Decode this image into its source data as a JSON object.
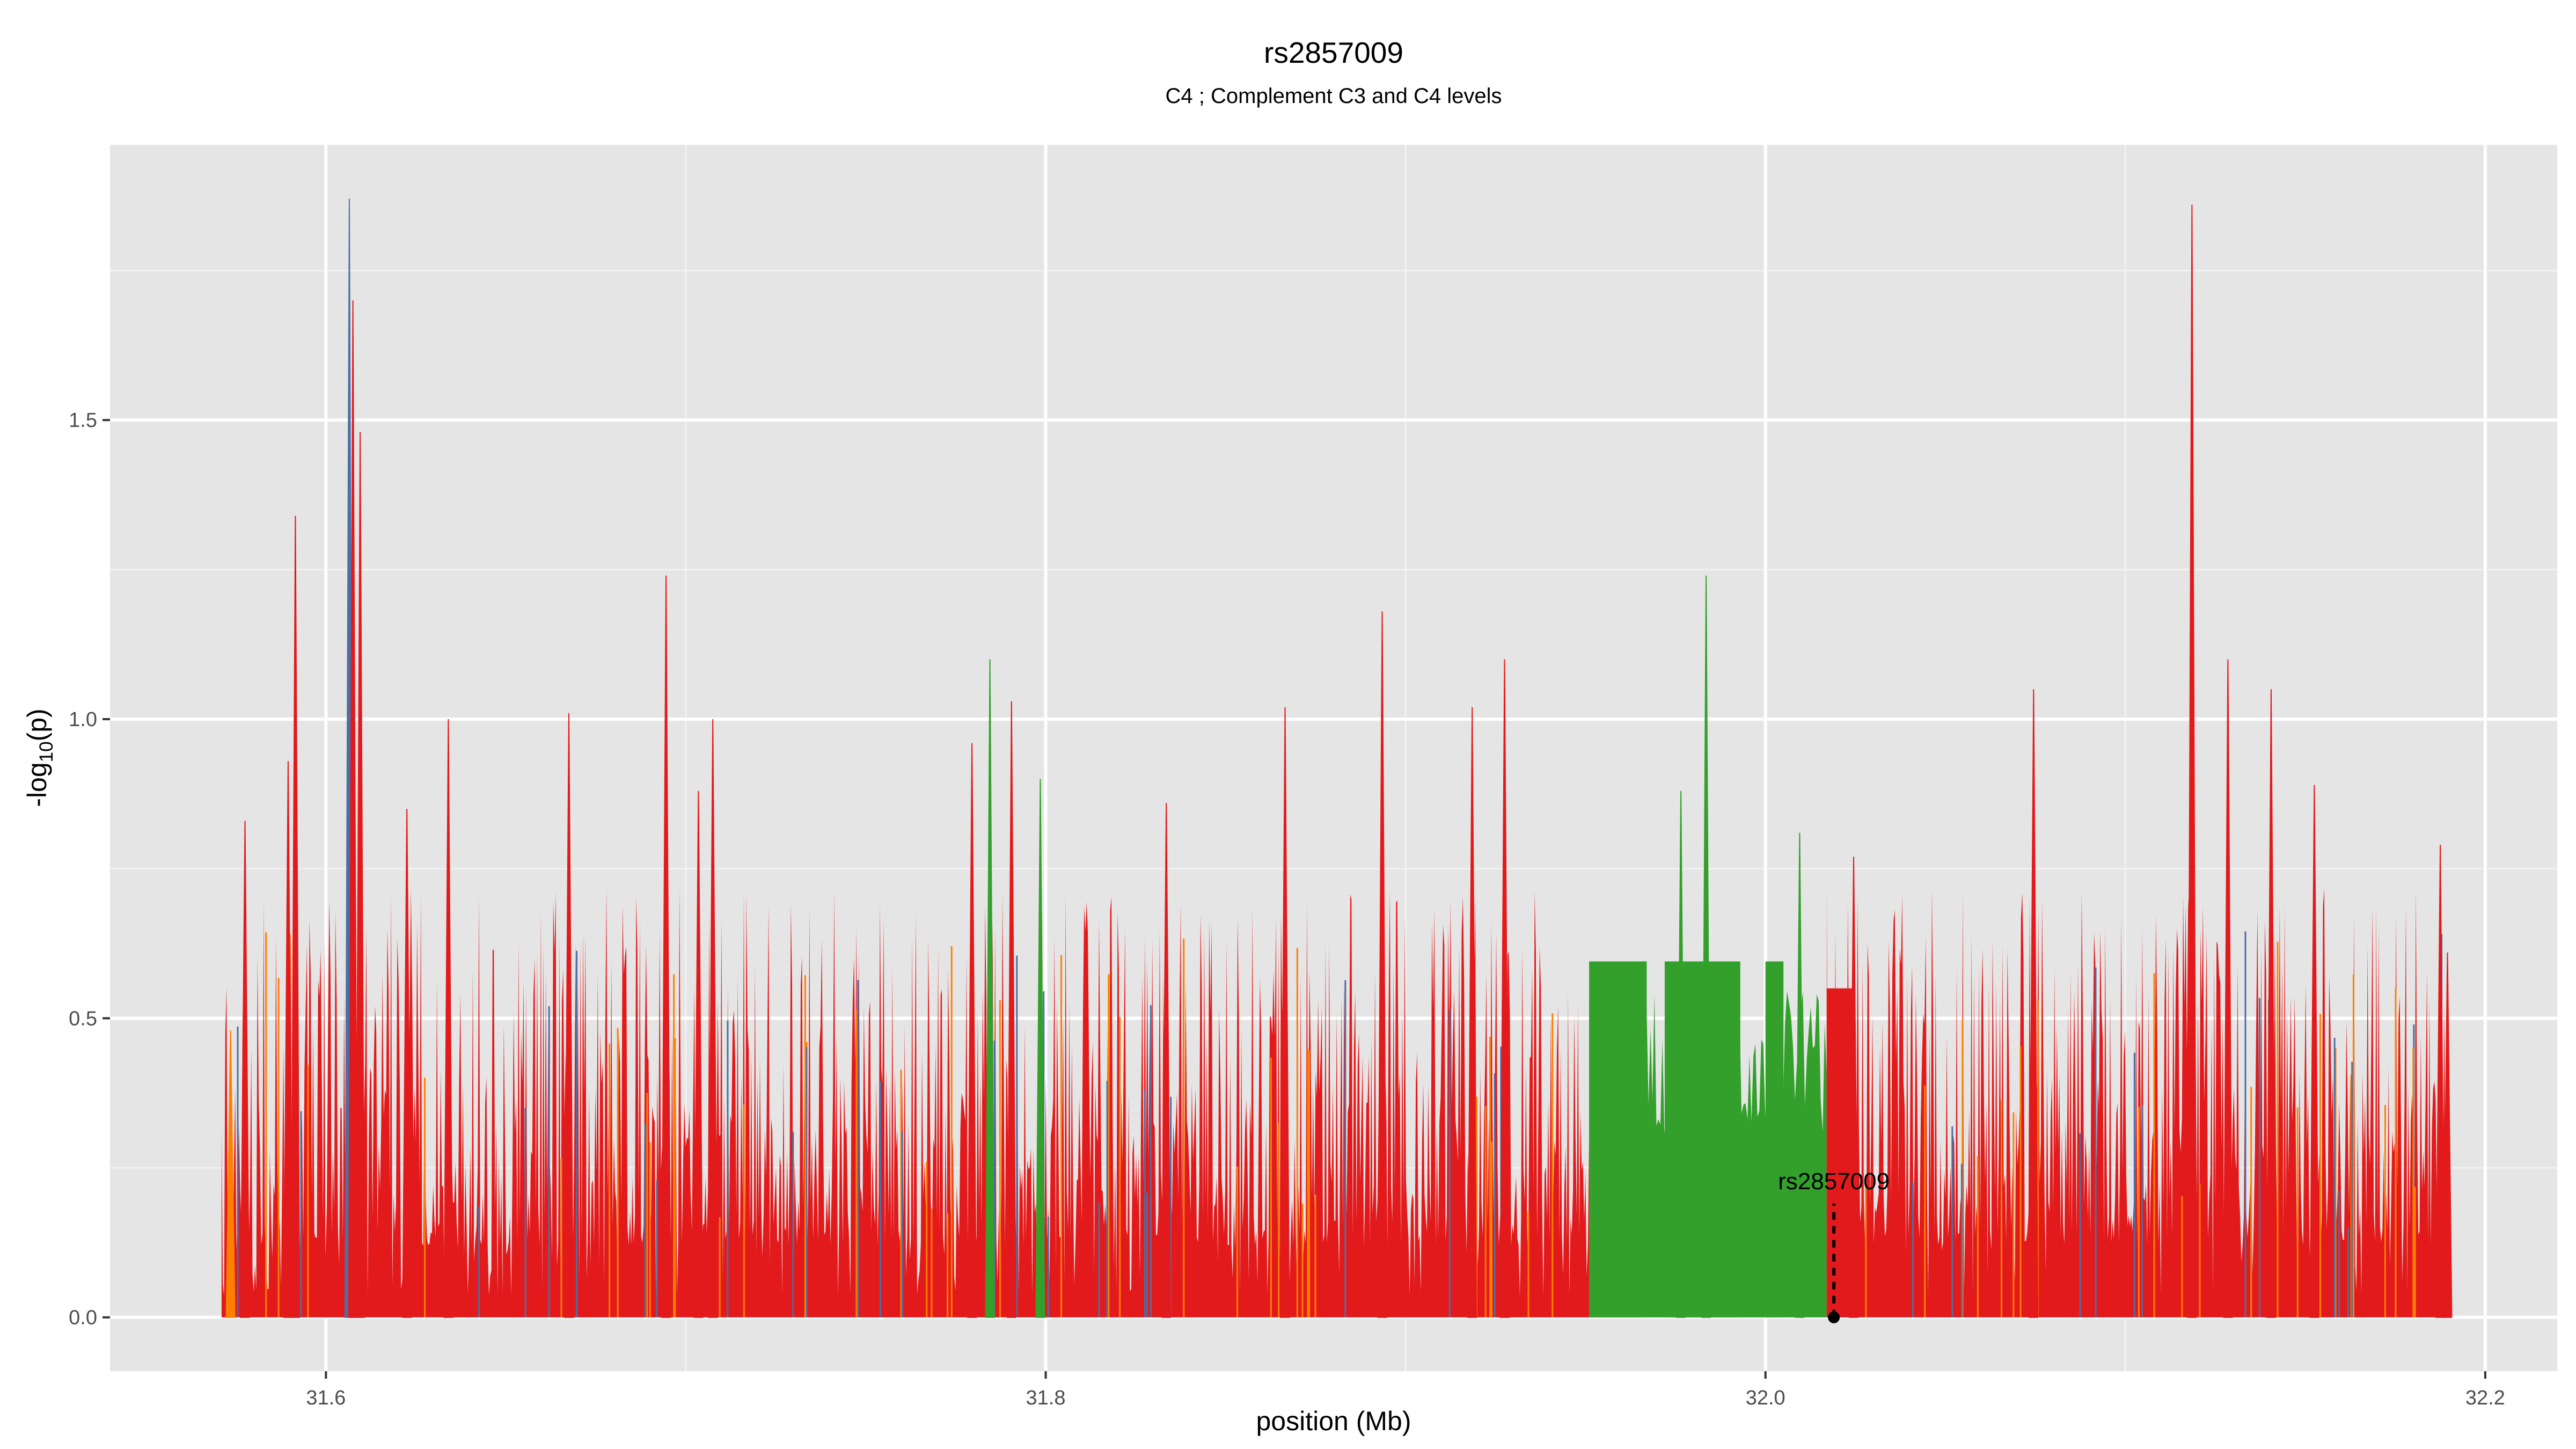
{
  "chart_data": {
    "type": "area",
    "title": "rs2857009",
    "subtitle": "C4 ; Complement C3 and C4 levels",
    "xlabel": "position (Mb)",
    "ylabel_main": "-log",
    "ylabel_sub": "10",
    "ylabel_tail": "(p)",
    "xlim": [
      31.54,
      32.22
    ],
    "ylim": [
      -0.09,
      1.96
    ],
    "x_ticks": [
      31.6,
      31.8,
      32.0,
      32.2
    ],
    "x_tick_labels": [
      "31.6",
      "31.8",
      "32.0",
      "32.2"
    ],
    "y_ticks": [
      0.0,
      0.5,
      1.0,
      1.5
    ],
    "y_tick_labels": [
      "0.0",
      "0.5",
      "1.0",
      "1.5"
    ],
    "grid": true,
    "panel_color": "#e5e5e5",
    "grid_color": "#ffffff",
    "series_colors": {
      "red": "#e31a1c",
      "orange": "#ff7f00",
      "green": "#33a02c",
      "blue": "#4a6fa5"
    },
    "x_range": [
      31.571,
      32.19
    ],
    "peaks": [
      {
        "x": 31.5735,
        "y": 0.48,
        "color": "orange"
      },
      {
        "x": 31.5775,
        "y": 0.83,
        "color": "red"
      },
      {
        "x": 31.5895,
        "y": 0.93,
        "color": "red"
      },
      {
        "x": 31.5915,
        "y": 1.34,
        "color": "red"
      },
      {
        "x": 31.6065,
        "y": 1.87,
        "color": "blue"
      },
      {
        "x": 31.6075,
        "y": 1.7,
        "color": "red"
      },
      {
        "x": 31.6095,
        "y": 1.48,
        "color": "red"
      },
      {
        "x": 31.6225,
        "y": 0.85,
        "color": "red"
      },
      {
        "x": 31.634,
        "y": 1.0,
        "color": "red"
      },
      {
        "x": 31.6675,
        "y": 1.01,
        "color": "red"
      },
      {
        "x": 31.6945,
        "y": 1.24,
        "color": "red"
      },
      {
        "x": 31.7035,
        "y": 0.88,
        "color": "red"
      },
      {
        "x": 31.7075,
        "y": 1.0,
        "color": "red"
      },
      {
        "x": 31.7795,
        "y": 0.96,
        "color": "red"
      },
      {
        "x": 31.7845,
        "y": 1.1,
        "color": "green"
      },
      {
        "x": 31.7905,
        "y": 1.03,
        "color": "red"
      },
      {
        "x": 31.7985,
        "y": 0.9,
        "color": "green"
      },
      {
        "x": 31.8335,
        "y": 0.86,
        "color": "red"
      },
      {
        "x": 31.8665,
        "y": 1.02,
        "color": "red"
      },
      {
        "x": 31.8935,
        "y": 1.18,
        "color": "red"
      },
      {
        "x": 31.9185,
        "y": 1.02,
        "color": "red"
      },
      {
        "x": 31.9275,
        "y": 1.1,
        "color": "red"
      },
      {
        "x": 31.9765,
        "y": 0.88,
        "color": "green"
      },
      {
        "x": 31.9835,
        "y": 1.24,
        "color": "green"
      },
      {
        "x": 32.0095,
        "y": 0.81,
        "color": "green"
      },
      {
        "x": 32.0245,
        "y": 0.77,
        "color": "red"
      },
      {
        "x": 32.0745,
        "y": 1.05,
        "color": "red"
      },
      {
        "x": 32.1185,
        "y": 1.86,
        "color": "red"
      },
      {
        "x": 32.1285,
        "y": 1.1,
        "color": "red"
      },
      {
        "x": 32.1405,
        "y": 1.05,
        "color": "red"
      },
      {
        "x": 32.1525,
        "y": 0.89,
        "color": "red"
      },
      {
        "x": 32.1875,
        "y": 0.79,
        "color": "red"
      },
      {
        "x": 32.1895,
        "y": 0.61,
        "color": "red"
      }
    ],
    "green_blocks": [
      {
        "x0": 31.951,
        "x1": 31.967,
        "y": 0.595
      },
      {
        "x0": 31.972,
        "x1": 31.993,
        "y": 0.595
      },
      {
        "x0": 32.0,
        "x1": 32.005,
        "y": 0.595
      }
    ],
    "green_region": [
      31.951,
      32.017
    ],
    "annotation": {
      "label": "rs2857009",
      "x": 32.019,
      "y": 0.0,
      "label_y": 0.2
    }
  }
}
